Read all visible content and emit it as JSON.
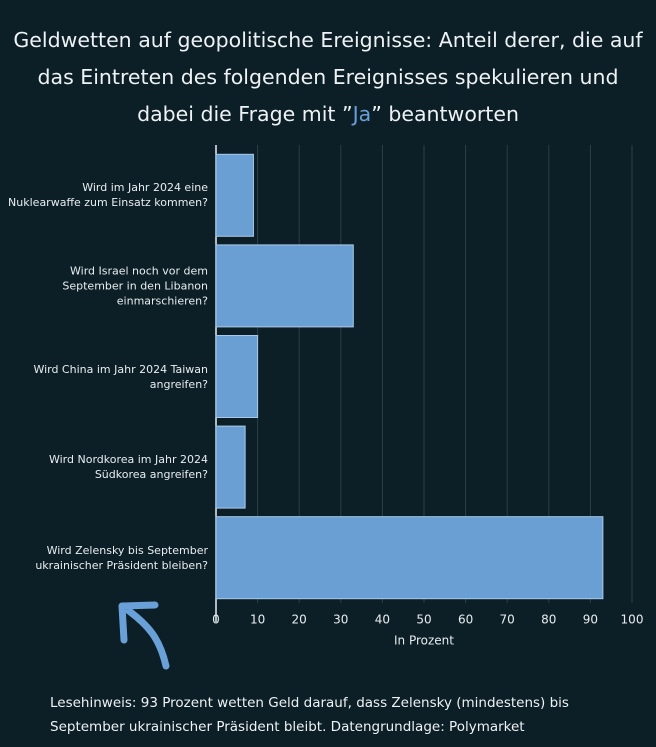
{
  "chart_data": {
    "type": "barh",
    "title_parts": [
      "Geldwetten auf geopolitische Ereignisse: Anteil derer, die auf das Eintreten des folgenden Ereignisses spekulieren und dabei die Frage mit ”",
      "Ja",
      "” beantworten"
    ],
    "categories": [
      "Wird im Jahr 2024 eine Nuklearwaffe zum Einsatz kommen?",
      "Wird Israel noch vor dem September in den Libanon einmarschieren?",
      "Wird China im Jahr 2024 Taiwan angreifen?",
      "Wird Nordkorea im Jahr 2024 Südkorea angreifen?",
      "Wird Zelensky bis September ukrainischer Präsident bleiben?"
    ],
    "values": [
      9,
      33,
      10,
      7,
      93
    ],
    "color": "#6a9fd3",
    "xlim": [
      0,
      100
    ],
    "xticks": [
      0,
      10,
      20,
      30,
      40,
      50,
      60,
      70,
      80,
      90,
      100
    ],
    "xlabel": "In Prozent",
    "grid": true,
    "note": "Lesehinweis: 93 Prozent wetten Geld darauf, dass Zelensky (mindestens) bis September ukrainischer Präsident bleibt. Datengrundlage: Polymarket"
  }
}
